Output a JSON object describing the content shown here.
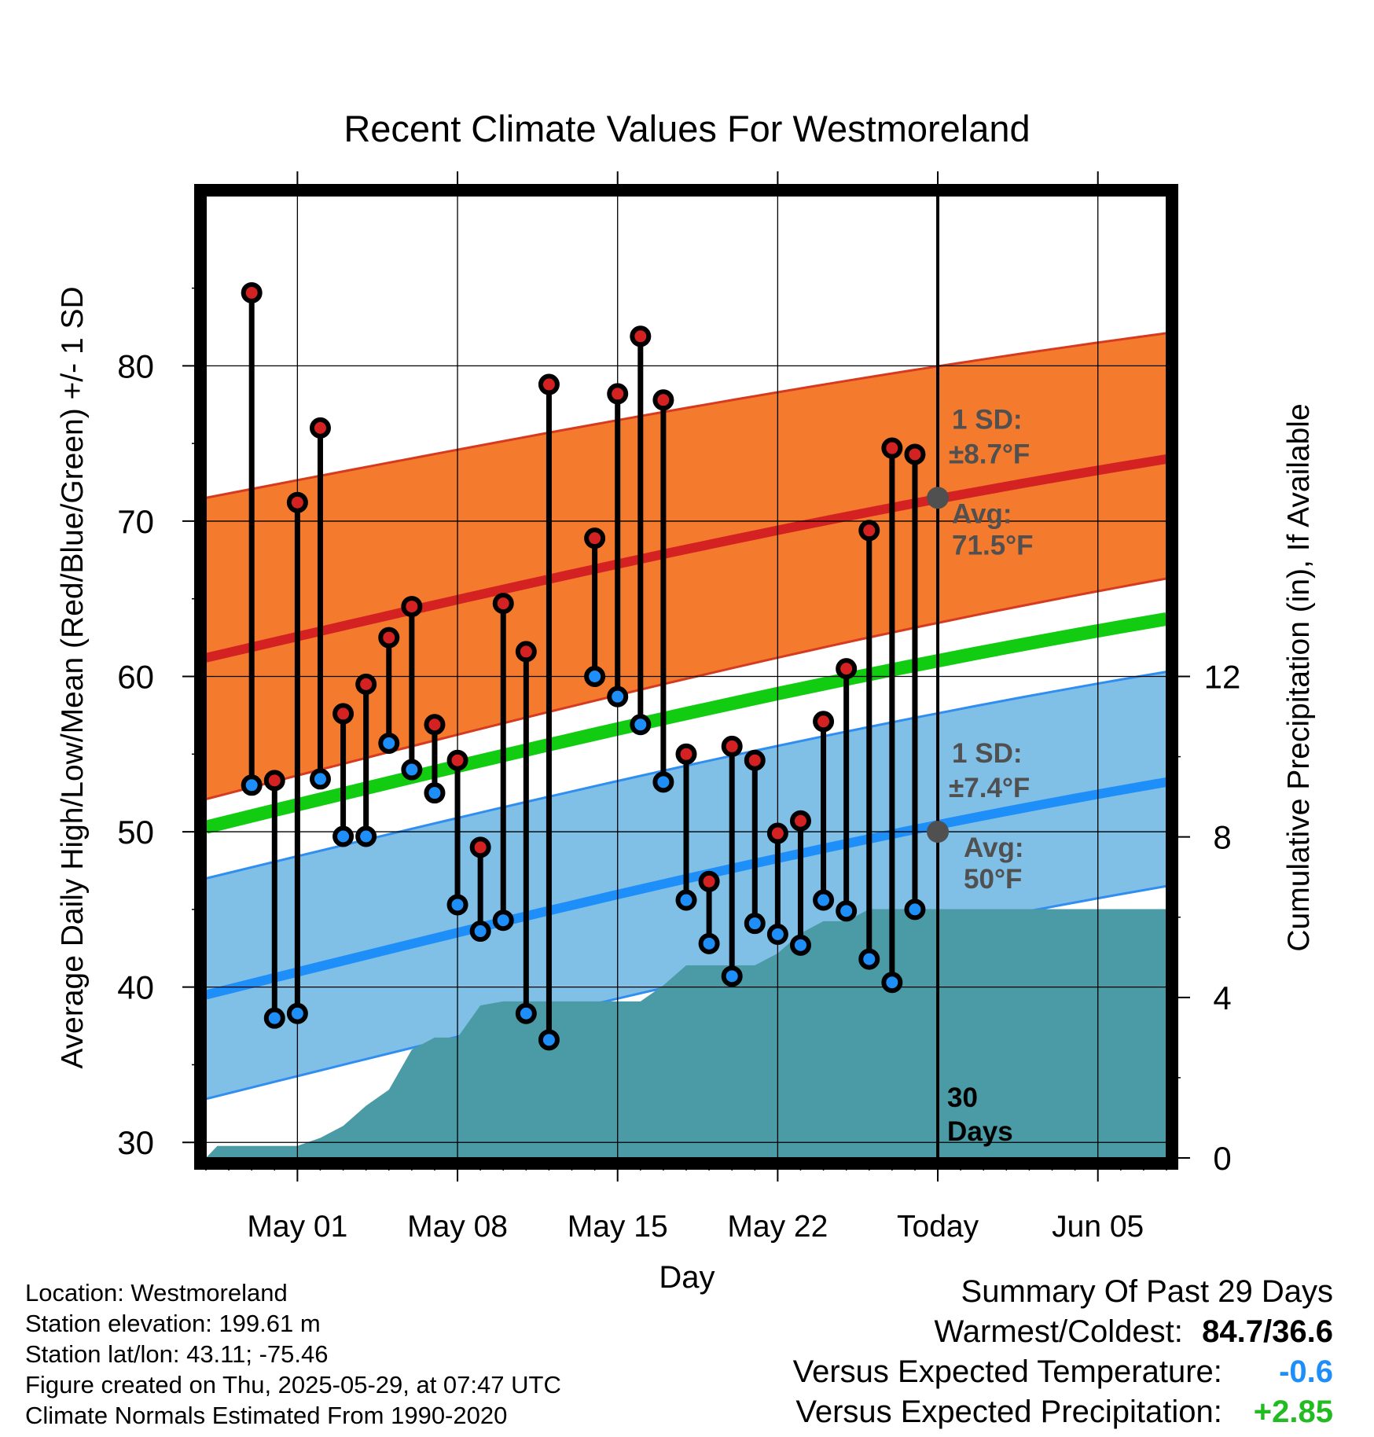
{
  "chart_data": {
    "type": "line",
    "title": "Recent Climate Values For Westmoreland",
    "xlabel": "Day",
    "ylabel": "Average Daily High/Low/Mean (Red/Blue/Green) +/- 1 SD",
    "y2label": "Cumulative Precipitation (in), If Available",
    "x_range": [
      "2025-04-27",
      "2025-06-08"
    ],
    "ylim": [
      29,
      91
    ],
    "y2lim": [
      0,
      24
    ],
    "y_ticks": [
      30,
      40,
      50,
      60,
      70,
      80
    ],
    "y2_ticks": [
      0,
      4,
      8,
      12
    ],
    "grid": true,
    "x_ticks": [
      {
        "date": "2025-05-01",
        "label": "May 01"
      },
      {
        "date": "2025-05-08",
        "label": "May 08"
      },
      {
        "date": "2025-05-15",
        "label": "May 15"
      },
      {
        "date": "2025-05-22",
        "label": "May 22"
      },
      {
        "date": "2025-05-29",
        "label": "Today"
      },
      {
        "date": "2025-06-05",
        "label": "Jun 05"
      }
    ],
    "today": "2025-05-29",
    "today_label": [
      "30",
      "Days"
    ],
    "normals": {
      "high_mean": {
        "start": 61.2,
        "end": 74.0
      },
      "high_sd_upper": {
        "start": 71.5,
        "end": 82.1
      },
      "high_sd_lower": {
        "start": 52.1,
        "end": 66.3
      },
      "daily_mean": {
        "start": 50.3,
        "end": 63.7
      },
      "low_mean": {
        "start": 39.5,
        "end": 53.2
      },
      "low_sd_upper": {
        "start": 47.0,
        "end": 60.3
      },
      "low_sd_lower": {
        "start": 32.8,
        "end": 46.5
      }
    },
    "high_annotation": {
      "sd_label": "1 SD:",
      "sd_value": "±8.7°F",
      "avg_label": "Avg:",
      "avg_value": "71.5°F",
      "avg": 71.5
    },
    "low_annotation": {
      "sd_label": "1 SD:",
      "sd_value": "±7.4°F",
      "avg_label": "Avg:",
      "avg_value": "50°F",
      "avg": 50
    },
    "series": [
      {
        "name": "High",
        "values": [
          {
            "date": "2025-04-29",
            "y": 84.7
          },
          {
            "date": "2025-04-30",
            "y": 53.3
          },
          {
            "date": "2025-05-01",
            "y": 71.2
          },
          {
            "date": "2025-05-02",
            "y": 76.0
          },
          {
            "date": "2025-05-03",
            "y": 57.6
          },
          {
            "date": "2025-05-04",
            "y": 59.5
          },
          {
            "date": "2025-05-05",
            "y": 62.5
          },
          {
            "date": "2025-05-06",
            "y": 64.5
          },
          {
            "date": "2025-05-07",
            "y": 56.9
          },
          {
            "date": "2025-05-08",
            "y": 54.6
          },
          {
            "date": "2025-05-09",
            "y": 49.0
          },
          {
            "date": "2025-05-10",
            "y": 64.7
          },
          {
            "date": "2025-05-11",
            "y": 61.6
          },
          {
            "date": "2025-05-12",
            "y": 78.8
          },
          {
            "date": "2025-05-14",
            "y": 68.9
          },
          {
            "date": "2025-05-15",
            "y": 78.2
          },
          {
            "date": "2025-05-16",
            "y": 81.9
          },
          {
            "date": "2025-05-17",
            "y": 77.8
          },
          {
            "date": "2025-05-18",
            "y": 55.0
          },
          {
            "date": "2025-05-19",
            "y": 46.8
          },
          {
            "date": "2025-05-20",
            "y": 55.5
          },
          {
            "date": "2025-05-21",
            "y": 54.6
          },
          {
            "date": "2025-05-22",
            "y": 49.9
          },
          {
            "date": "2025-05-23",
            "y": 50.7
          },
          {
            "date": "2025-05-24",
            "y": 57.1
          },
          {
            "date": "2025-05-25",
            "y": 60.5
          },
          {
            "date": "2025-05-26",
            "y": 69.4
          },
          {
            "date": "2025-05-27",
            "y": 74.7
          },
          {
            "date": "2025-05-28",
            "y": 74.3
          }
        ]
      },
      {
        "name": "Low",
        "values": [
          {
            "date": "2025-04-29",
            "y": 53.0
          },
          {
            "date": "2025-04-30",
            "y": 38.0
          },
          {
            "date": "2025-05-01",
            "y": 38.3
          },
          {
            "date": "2025-05-02",
            "y": 53.4
          },
          {
            "date": "2025-05-03",
            "y": 49.7
          },
          {
            "date": "2025-05-04",
            "y": 49.7
          },
          {
            "date": "2025-05-05",
            "y": 55.7
          },
          {
            "date": "2025-05-06",
            "y": 54.0
          },
          {
            "date": "2025-05-07",
            "y": 52.5
          },
          {
            "date": "2025-05-08",
            "y": 45.3
          },
          {
            "date": "2025-05-09",
            "y": 43.6
          },
          {
            "date": "2025-05-10",
            "y": 44.3
          },
          {
            "date": "2025-05-11",
            "y": 38.3
          },
          {
            "date": "2025-05-12",
            "y": 36.6
          },
          {
            "date": "2025-05-14",
            "y": 60.0
          },
          {
            "date": "2025-05-15",
            "y": 58.7
          },
          {
            "date": "2025-05-16",
            "y": 56.9
          },
          {
            "date": "2025-05-17",
            "y": 53.2
          },
          {
            "date": "2025-05-18",
            "y": 45.6
          },
          {
            "date": "2025-05-19",
            "y": 42.8
          },
          {
            "date": "2025-05-20",
            "y": 40.7
          },
          {
            "date": "2025-05-21",
            "y": 44.1
          },
          {
            "date": "2025-05-22",
            "y": 43.4
          },
          {
            "date": "2025-05-23",
            "y": 42.7
          },
          {
            "date": "2025-05-24",
            "y": 45.6
          },
          {
            "date": "2025-05-25",
            "y": 44.9
          },
          {
            "date": "2025-05-26",
            "y": 41.8
          },
          {
            "date": "2025-05-27",
            "y": 40.3
          },
          {
            "date": "2025-05-28",
            "y": 45.0
          }
        ]
      },
      {
        "name": "Cumulative Precipitation",
        "values": [
          {
            "date": "2025-04-27",
            "y": 0.0
          },
          {
            "date": "2025-04-27.5",
            "y": 0.3
          },
          {
            "date": "2025-05-01",
            "y": 0.3
          },
          {
            "date": "2025-05-02",
            "y": 0.5
          },
          {
            "date": "2025-05-03",
            "y": 0.8
          },
          {
            "date": "2025-05-04",
            "y": 1.3
          },
          {
            "date": "2025-05-05",
            "y": 1.7
          },
          {
            "date": "2025-05-06",
            "y": 2.7
          },
          {
            "date": "2025-05-07",
            "y": 3.0
          },
          {
            "date": "2025-05-08",
            "y": 3.0
          },
          {
            "date": "2025-05-09",
            "y": 3.8
          },
          {
            "date": "2025-05-10",
            "y": 3.9
          },
          {
            "date": "2025-05-11",
            "y": 3.9
          },
          {
            "date": "2025-05-15",
            "y": 3.9
          },
          {
            "date": "2025-05-16",
            "y": 3.9
          },
          {
            "date": "2025-05-17",
            "y": 4.3
          },
          {
            "date": "2025-05-18",
            "y": 4.8
          },
          {
            "date": "2025-05-19",
            "y": 4.8
          },
          {
            "date": "2025-05-21",
            "y": 4.8
          },
          {
            "date": "2025-05-22",
            "y": 5.1
          },
          {
            "date": "2025-05-23",
            "y": 5.6
          },
          {
            "date": "2025-05-24",
            "y": 5.9
          },
          {
            "date": "2025-05-25",
            "y": 5.9
          },
          {
            "date": "2025-05-26",
            "y": 6.2
          },
          {
            "date": "2025-06-08",
            "y": 6.2
          }
        ]
      }
    ],
    "colors": {
      "high_band": "#f47a2e",
      "high_edge": "#d63a1f",
      "high_mean": "#d42222",
      "mean_line": "#11cc11",
      "low_band": "#80bfe6",
      "low_edge": "#2f8ef0",
      "low_mean": "#1e8ff8",
      "precip": "#4a9ba5",
      "high_dot": "#d42222",
      "low_dot": "#1e8ff8",
      "annotation": "#505050"
    }
  },
  "info": {
    "location": "Location: Westmoreland",
    "elevation": "Station elevation: 199.61 m",
    "latlon": "Station lat/lon: 43.11; -75.46",
    "created": "Figure created on Thu, 2025-05-29, at 07:47 UTC",
    "normals": "Climate Normals Estimated From 1990-2020"
  },
  "summary": {
    "title": "Summary Of Past 29 Days",
    "warm_cold_label": "Warmest/Coldest:",
    "warm_cold_value": "84.7/36.6",
    "temp_label": "Versus Expected Temperature:",
    "temp_value": "-0.6",
    "temp_color": "#1e8ff8",
    "precip_label": "Versus Expected Precipitation:",
    "precip_value": "+2.85",
    "precip_color": "#22bb22"
  }
}
